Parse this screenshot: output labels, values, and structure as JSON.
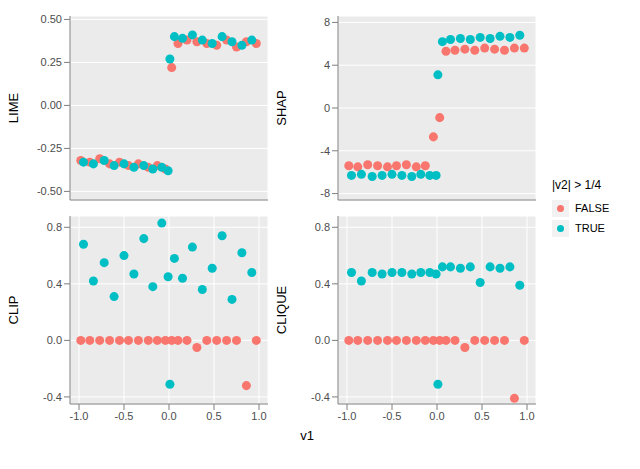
{
  "x_label": "v1",
  "legend_title": "|v2| > 1/4",
  "chart_data": [
    {
      "type": "scatter",
      "y_label": "LIME",
      "tick_labels": "y",
      "xlim": [
        -1.1,
        1.1
      ],
      "xticks": [
        {
          "value": -1,
          "label": "-1.0"
        },
        {
          "value": -0.5,
          "label": "-0.5"
        },
        {
          "value": 0,
          "label": "0.0"
        },
        {
          "value": 0.5,
          "label": "0.5"
        },
        {
          "value": 1,
          "label": "1.0"
        }
      ],
      "ylim": [
        -0.55,
        0.52
      ],
      "yticks": [
        {
          "value": -0.5,
          "label": "-0.50"
        },
        {
          "value": -0.25,
          "label": "-0.25"
        },
        {
          "value": 0,
          "label": "0.00"
        },
        {
          "value": 0.25,
          "label": "0.25"
        },
        {
          "value": 0.5,
          "label": "0.50"
        }
      ],
      "grid": true,
      "series": [
        {
          "name": "FALSE",
          "color": "#F8766D",
          "x": [
            -0.98,
            -0.88,
            -0.77,
            -0.66,
            -0.55,
            -0.45,
            -0.34,
            -0.23,
            -0.13,
            -0.04,
            0.03,
            0.1,
            0.2,
            0.31,
            0.42,
            0.53,
            0.64,
            0.75,
            0.86,
            0.97
          ],
          "values": [
            -0.32,
            -0.33,
            -0.31,
            -0.34,
            -0.33,
            -0.35,
            -0.34,
            -0.36,
            -0.35,
            -0.37,
            0.22,
            0.36,
            0.38,
            0.37,
            0.36,
            0.35,
            0.38,
            0.34,
            0.37,
            0.36
          ]
        },
        {
          "name": "TRUE",
          "color": "#00BFC4",
          "x": [
            -0.95,
            -0.84,
            -0.72,
            -0.61,
            -0.5,
            -0.39,
            -0.28,
            -0.18,
            -0.08,
            -0.01,
            0.01,
            0.06,
            0.15,
            0.26,
            0.37,
            0.48,
            0.59,
            0.7,
            0.81,
            0.92
          ],
          "values": [
            -0.33,
            -0.34,
            -0.32,
            -0.35,
            -0.34,
            -0.36,
            -0.35,
            -0.37,
            -0.36,
            -0.38,
            0.27,
            0.4,
            0.39,
            0.41,
            0.38,
            0.36,
            0.4,
            0.37,
            0.35,
            0.38
          ]
        }
      ]
    },
    {
      "type": "scatter",
      "y_label": "SHAP",
      "tick_labels": "y",
      "xlim": [
        -1.1,
        1.1
      ],
      "xticks": [
        {
          "value": -1,
          "label": "-1.0"
        },
        {
          "value": -0.5,
          "label": "-0.5"
        },
        {
          "value": 0,
          "label": "0.0"
        },
        {
          "value": 0.5,
          "label": "0.5"
        },
        {
          "value": 1,
          "label": "1.0"
        }
      ],
      "ylim": [
        -8.6,
        8.6
      ],
      "yticks": [
        -8,
        -4,
        0,
        4,
        8
      ],
      "grid": true,
      "series": [
        {
          "name": "FALSE",
          "color": "#F8766D",
          "x": [
            -0.98,
            -0.88,
            -0.77,
            -0.66,
            -0.55,
            -0.45,
            -0.34,
            -0.23,
            -0.13,
            -0.04,
            0.03,
            0.1,
            0.2,
            0.31,
            0.42,
            0.53,
            0.64,
            0.75,
            0.86,
            0.97
          ],
          "values": [
            -5.4,
            -5.5,
            -5.3,
            -5.4,
            -5.5,
            -5.4,
            -5.3,
            -5.5,
            -5.4,
            -2.7,
            -0.9,
            5.3,
            5.4,
            5.5,
            5.4,
            5.6,
            5.5,
            5.4,
            5.6,
            5.6
          ]
        },
        {
          "name": "TRUE",
          "color": "#00BFC4",
          "x": [
            -0.95,
            -0.84,
            -0.72,
            -0.61,
            -0.5,
            -0.39,
            -0.28,
            -0.18,
            -0.08,
            -0.01,
            0.01,
            0.06,
            0.15,
            0.26,
            0.37,
            0.48,
            0.59,
            0.7,
            0.81,
            0.92
          ],
          "values": [
            -6.3,
            -6.2,
            -6.4,
            -6.3,
            -6.2,
            -6.3,
            -6.4,
            -6.2,
            -6.3,
            -6.3,
            3.1,
            6.2,
            6.4,
            6.5,
            6.4,
            6.6,
            6.5,
            6.7,
            6.6,
            6.8
          ]
        }
      ]
    },
    {
      "type": "scatter",
      "y_label": "CLIP",
      "xlim": [
        -1.1,
        1.1
      ],
      "xticks": [
        {
          "value": -1,
          "label": "-1.0"
        },
        {
          "value": -0.5,
          "label": "-0.5"
        },
        {
          "value": 0,
          "label": "0.0"
        },
        {
          "value": 0.5,
          "label": "0.5"
        },
        {
          "value": 1,
          "label": "1.0"
        }
      ],
      "ylim": [
        -0.45,
        0.88
      ],
      "yticks": [
        {
          "value": -0.4,
          "label": "-0.4"
        },
        {
          "value": 0,
          "label": "0.0"
        },
        {
          "value": 0.4,
          "label": "0.4"
        },
        {
          "value": 0.8,
          "label": "0.8"
        }
      ],
      "grid": true,
      "series": [
        {
          "name": "FALSE",
          "color": "#F8766D",
          "x": [
            -0.98,
            -0.88,
            -0.77,
            -0.66,
            -0.55,
            -0.45,
            -0.34,
            -0.23,
            -0.13,
            -0.04,
            0.03,
            0.1,
            0.2,
            0.31,
            0.42,
            0.53,
            0.64,
            0.75,
            0.86,
            0.97
          ],
          "values": [
            0,
            0,
            0,
            0,
            0,
            0,
            0,
            0,
            0,
            0,
            0,
            0,
            0,
            -0.05,
            0,
            0,
            0,
            0,
            -0.32,
            0
          ]
        },
        {
          "name": "TRUE",
          "color": "#00BFC4",
          "x": [
            -0.95,
            -0.84,
            -0.72,
            -0.61,
            -0.5,
            -0.39,
            -0.28,
            -0.18,
            -0.08,
            -0.01,
            0.01,
            0.06,
            0.15,
            0.26,
            0.37,
            0.48,
            0.59,
            0.7,
            0.81,
            0.92
          ],
          "values": [
            0.68,
            0.42,
            0.55,
            0.31,
            0.6,
            0.47,
            0.72,
            0.38,
            0.83,
            0.45,
            -0.31,
            0.58,
            0.44,
            0.66,
            0.36,
            0.51,
            0.74,
            0.29,
            0.62,
            0.48
          ]
        }
      ]
    },
    {
      "type": "scatter",
      "y_label": "CLIQUE",
      "xlim": [
        -1.1,
        1.1
      ],
      "xticks": [
        {
          "value": -1,
          "label": "-1.0"
        },
        {
          "value": -0.5,
          "label": "-0.5"
        },
        {
          "value": 0,
          "label": "0.0"
        },
        {
          "value": 0.5,
          "label": "0.5"
        },
        {
          "value": 1,
          "label": "1.0"
        }
      ],
      "ylim": [
        -0.45,
        0.88
      ],
      "yticks": [
        {
          "value": -0.4,
          "label": "-0.4"
        },
        {
          "value": 0,
          "label": "0.0"
        },
        {
          "value": 0.4,
          "label": "0.4"
        },
        {
          "value": 0.8,
          "label": "0.8"
        }
      ],
      "grid": true,
      "series": [
        {
          "name": "FALSE",
          "color": "#F8766D",
          "x": [
            -0.98,
            -0.88,
            -0.77,
            -0.66,
            -0.55,
            -0.45,
            -0.34,
            -0.23,
            -0.13,
            -0.04,
            0.03,
            0.1,
            0.2,
            0.31,
            0.42,
            0.53,
            0.64,
            0.75,
            0.86,
            0.97
          ],
          "values": [
            0,
            0,
            0,
            0,
            0,
            0,
            0,
            0,
            0,
            0,
            0,
            0,
            0,
            -0.05,
            0,
            0,
            0,
            0,
            -0.41,
            0
          ]
        },
        {
          "name": "TRUE",
          "color": "#00BFC4",
          "x": [
            -0.95,
            -0.84,
            -0.72,
            -0.61,
            -0.5,
            -0.39,
            -0.28,
            -0.18,
            -0.08,
            -0.01,
            0.01,
            0.06,
            0.15,
            0.26,
            0.37,
            0.48,
            0.59,
            0.7,
            0.81,
            0.92
          ],
          "values": [
            0.48,
            0.42,
            0.48,
            0.47,
            0.48,
            0.48,
            0.47,
            0.48,
            0.48,
            0.47,
            -0.31,
            0.52,
            0.52,
            0.51,
            0.52,
            0.41,
            0.52,
            0.51,
            0.52,
            0.39
          ]
        }
      ]
    }
  ]
}
